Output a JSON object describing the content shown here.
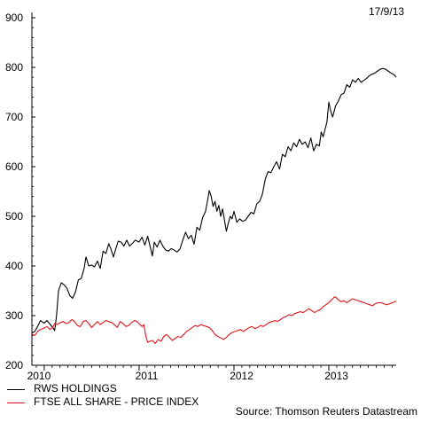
{
  "date_label": "17/9/13",
  "source": "Source: Thomson Reuters Datastream",
  "colors": {
    "rws": "#000000",
    "ftse": "#e3141c",
    "axis": "#000000"
  },
  "chart_data": {
    "type": "line",
    "title": "",
    "xlabel": "",
    "ylabel": "",
    "ylim": [
      200,
      900
    ],
    "yticks": [
      200,
      300,
      400,
      500,
      600,
      700,
      800,
      900
    ],
    "xlim": [
      2009.87,
      2013.71
    ],
    "xticks": [
      {
        "label": "2010",
        "value": 2010.0
      },
      {
        "label": "2011",
        "value": 2011.0
      },
      {
        "label": "2012",
        "value": 2012.0
      },
      {
        "label": "2013",
        "value": 2013.0
      }
    ],
    "grid": false,
    "legend_position": "bottom-left",
    "series": [
      {
        "name": "RWS HOLDINGS",
        "color": "#000000",
        "points": [
          [
            2009.87,
            265
          ],
          [
            2009.9,
            268
          ],
          [
            2009.93,
            278
          ],
          [
            2009.96,
            290
          ],
          [
            2010.0,
            285
          ],
          [
            2010.03,
            290
          ],
          [
            2010.06,
            283
          ],
          [
            2010.09,
            276
          ],
          [
            2010.11,
            270
          ],
          [
            2010.13,
            300
          ],
          [
            2010.15,
            350
          ],
          [
            2010.18,
            366
          ],
          [
            2010.21,
            362
          ],
          [
            2010.24,
            355
          ],
          [
            2010.27,
            340
          ],
          [
            2010.3,
            335
          ],
          [
            2010.33,
            348
          ],
          [
            2010.36,
            372
          ],
          [
            2010.39,
            375
          ],
          [
            2010.42,
            395
          ],
          [
            2010.44,
            418
          ],
          [
            2010.47,
            400
          ],
          [
            2010.5,
            402
          ],
          [
            2010.53,
            398
          ],
          [
            2010.56,
            410
          ],
          [
            2010.59,
            395
          ],
          [
            2010.62,
            430
          ],
          [
            2010.65,
            425
          ],
          [
            2010.68,
            445
          ],
          [
            2010.7,
            436
          ],
          [
            2010.73,
            418
          ],
          [
            2010.75,
            432
          ],
          [
            2010.78,
            450
          ],
          [
            2010.81,
            448
          ],
          [
            2010.84,
            440
          ],
          [
            2010.87,
            452
          ],
          [
            2010.9,
            440
          ],
          [
            2010.93,
            446
          ],
          [
            2010.96,
            452
          ],
          [
            2011.0,
            448
          ],
          [
            2011.03,
            458
          ],
          [
            2011.06,
            442
          ],
          [
            2011.09,
            460
          ],
          [
            2011.12,
            436
          ],
          [
            2011.14,
            420
          ],
          [
            2011.16,
            448
          ],
          [
            2011.19,
            438
          ],
          [
            2011.22,
            452
          ],
          [
            2011.25,
            440
          ],
          [
            2011.28,
            432
          ],
          [
            2011.31,
            430
          ],
          [
            2011.34,
            435
          ],
          [
            2011.37,
            432
          ],
          [
            2011.4,
            428
          ],
          [
            2011.43,
            434
          ],
          [
            2011.46,
            452
          ],
          [
            2011.49,
            468
          ],
          [
            2011.52,
            455
          ],
          [
            2011.55,
            462
          ],
          [
            2011.58,
            444
          ],
          [
            2011.61,
            478
          ],
          [
            2011.64,
            472
          ],
          [
            2011.67,
            498
          ],
          [
            2011.7,
            510
          ],
          [
            2011.72,
            530
          ],
          [
            2011.74,
            552
          ],
          [
            2011.76,
            540
          ],
          [
            2011.78,
            520
          ],
          [
            2011.8,
            530
          ],
          [
            2011.82,
            510
          ],
          [
            2011.84,
            522
          ],
          [
            2011.86,
            500
          ],
          [
            2011.88,
            515
          ],
          [
            2011.9,
            492
          ],
          [
            2011.92,
            470
          ],
          [
            2011.94,
            486
          ],
          [
            2011.96,
            500
          ],
          [
            2011.98,
            495
          ],
          [
            2012.0,
            510
          ],
          [
            2012.03,
            488
          ],
          [
            2012.06,
            495
          ],
          [
            2012.09,
            490
          ],
          [
            2012.12,
            492
          ],
          [
            2012.15,
            500
          ],
          [
            2012.18,
            508
          ],
          [
            2012.21,
            505
          ],
          [
            2012.24,
            525
          ],
          [
            2012.27,
            530
          ],
          [
            2012.3,
            545
          ],
          [
            2012.33,
            575
          ],
          [
            2012.36,
            590
          ],
          [
            2012.39,
            588
          ],
          [
            2012.42,
            600
          ],
          [
            2012.45,
            610
          ],
          [
            2012.48,
            595
          ],
          [
            2012.51,
            625
          ],
          [
            2012.54,
            620
          ],
          [
            2012.57,
            640
          ],
          [
            2012.6,
            632
          ],
          [
            2012.63,
            648
          ],
          [
            2012.66,
            640
          ],
          [
            2012.69,
            655
          ],
          [
            2012.72,
            645
          ],
          [
            2012.75,
            650
          ],
          [
            2012.78,
            638
          ],
          [
            2012.81,
            658
          ],
          [
            2012.84,
            632
          ],
          [
            2012.87,
            645
          ],
          [
            2012.9,
            642
          ],
          [
            2012.92,
            670
          ],
          [
            2012.94,
            660
          ],
          [
            2012.96,
            675
          ],
          [
            2012.98,
            690
          ],
          [
            2013.0,
            730
          ],
          [
            2013.02,
            712
          ],
          [
            2013.04,
            700
          ],
          [
            2013.07,
            722
          ],
          [
            2013.1,
            732
          ],
          [
            2013.13,
            745
          ],
          [
            2013.16,
            748
          ],
          [
            2013.19,
            765
          ],
          [
            2013.22,
            760
          ],
          [
            2013.25,
            775
          ],
          [
            2013.28,
            770
          ],
          [
            2013.31,
            778
          ],
          [
            2013.34,
            770
          ],
          [
            2013.37,
            774
          ],
          [
            2013.4,
            778
          ],
          [
            2013.42,
            782
          ],
          [
            2013.45,
            786
          ],
          [
            2013.48,
            788
          ],
          [
            2013.51,
            792
          ],
          [
            2013.54,
            796
          ],
          [
            2013.57,
            798
          ],
          [
            2013.6,
            796
          ],
          [
            2013.63,
            792
          ],
          [
            2013.66,
            788
          ],
          [
            2013.69,
            785
          ],
          [
            2013.71,
            780
          ]
        ]
      },
      {
        "name": "FTSE ALL SHARE - PRICE INDEX",
        "color": "#e3141c",
        "points": [
          [
            2009.87,
            262
          ],
          [
            2009.9,
            260
          ],
          [
            2009.93,
            268
          ],
          [
            2009.96,
            272
          ],
          [
            2010.0,
            275
          ],
          [
            2010.03,
            278
          ],
          [
            2010.06,
            272
          ],
          [
            2010.09,
            276
          ],
          [
            2010.11,
            284
          ],
          [
            2010.14,
            282
          ],
          [
            2010.17,
            286
          ],
          [
            2010.2,
            288
          ],
          [
            2010.23,
            284
          ],
          [
            2010.26,
            286
          ],
          [
            2010.29,
            292
          ],
          [
            2010.32,
            288
          ],
          [
            2010.35,
            280
          ],
          [
            2010.38,
            278
          ],
          [
            2010.41,
            288
          ],
          [
            2010.44,
            290
          ],
          [
            2010.47,
            284
          ],
          [
            2010.5,
            276
          ],
          [
            2010.53,
            282
          ],
          [
            2010.56,
            288
          ],
          [
            2010.59,
            282
          ],
          [
            2010.62,
            286
          ],
          [
            2010.65,
            290
          ],
          [
            2010.68,
            288
          ],
          [
            2010.71,
            286
          ],
          [
            2010.74,
            282
          ],
          [
            2010.77,
            276
          ],
          [
            2010.8,
            288
          ],
          [
            2010.83,
            284
          ],
          [
            2010.86,
            278
          ],
          [
            2010.89,
            280
          ],
          [
            2010.92,
            286
          ],
          [
            2010.95,
            290
          ],
          [
            2010.98,
            288
          ],
          [
            2011.0,
            284
          ],
          [
            2011.03,
            278
          ],
          [
            2011.05,
            282
          ],
          [
            2011.07,
            260
          ],
          [
            2011.09,
            246
          ],
          [
            2011.11,
            248
          ],
          [
            2011.14,
            250
          ],
          [
            2011.17,
            244
          ],
          [
            2011.2,
            252
          ],
          [
            2011.23,
            248
          ],
          [
            2011.26,
            258
          ],
          [
            2011.29,
            262
          ],
          [
            2011.32,
            256
          ],
          [
            2011.35,
            250
          ],
          [
            2011.38,
            254
          ],
          [
            2011.41,
            258
          ],
          [
            2011.44,
            256
          ],
          [
            2011.47,
            262
          ],
          [
            2011.5,
            268
          ],
          [
            2011.53,
            272
          ],
          [
            2011.56,
            276
          ],
          [
            2011.59,
            280
          ],
          [
            2011.62,
            278
          ],
          [
            2011.65,
            282
          ],
          [
            2011.68,
            280
          ],
          [
            2011.71,
            278
          ],
          [
            2011.74,
            276
          ],
          [
            2011.77,
            270
          ],
          [
            2011.8,
            262
          ],
          [
            2011.83,
            258
          ],
          [
            2011.86,
            255
          ],
          [
            2011.89,
            252
          ],
          [
            2011.92,
            256
          ],
          [
            2011.95,
            262
          ],
          [
            2011.98,
            266
          ],
          [
            2012.01,
            268
          ],
          [
            2012.04,
            270
          ],
          [
            2012.07,
            272
          ],
          [
            2012.1,
            268
          ],
          [
            2012.13,
            272
          ],
          [
            2012.16,
            276
          ],
          [
            2012.19,
            278
          ],
          [
            2012.22,
            274
          ],
          [
            2012.25,
            276
          ],
          [
            2012.28,
            280
          ],
          [
            2012.31,
            278
          ],
          [
            2012.34,
            282
          ],
          [
            2012.37,
            286
          ],
          [
            2012.4,
            288
          ],
          [
            2012.43,
            290
          ],
          [
            2012.46,
            288
          ],
          [
            2012.49,
            292
          ],
          [
            2012.52,
            296
          ],
          [
            2012.55,
            298
          ],
          [
            2012.58,
            302
          ],
          [
            2012.61,
            300
          ],
          [
            2012.64,
            304
          ],
          [
            2012.67,
            306
          ],
          [
            2012.7,
            308
          ],
          [
            2012.73,
            306
          ],
          [
            2012.76,
            310
          ],
          [
            2012.79,
            314
          ],
          [
            2012.82,
            310
          ],
          [
            2012.85,
            306
          ],
          [
            2012.88,
            310
          ],
          [
            2012.91,
            312
          ],
          [
            2012.94,
            318
          ],
          [
            2012.97,
            322
          ],
          [
            2013.0,
            326
          ],
          [
            2013.02,
            330
          ],
          [
            2013.04,
            334
          ],
          [
            2013.06,
            338
          ],
          [
            2013.08,
            336
          ],
          [
            2013.1,
            332
          ],
          [
            2013.13,
            328
          ],
          [
            2013.16,
            330
          ],
          [
            2013.19,
            326
          ],
          [
            2013.22,
            330
          ],
          [
            2013.25,
            334
          ],
          [
            2013.28,
            332
          ],
          [
            2013.31,
            330
          ],
          [
            2013.34,
            328
          ],
          [
            2013.37,
            326
          ],
          [
            2013.4,
            324
          ],
          [
            2013.43,
            322
          ],
          [
            2013.46,
            320
          ],
          [
            2013.49,
            324
          ],
          [
            2013.52,
            326
          ],
          [
            2013.55,
            326
          ],
          [
            2013.58,
            324
          ],
          [
            2013.61,
            322
          ],
          [
            2013.64,
            324
          ],
          [
            2013.67,
            326
          ],
          [
            2013.7,
            328
          ],
          [
            2013.71,
            329
          ]
        ]
      }
    ]
  }
}
